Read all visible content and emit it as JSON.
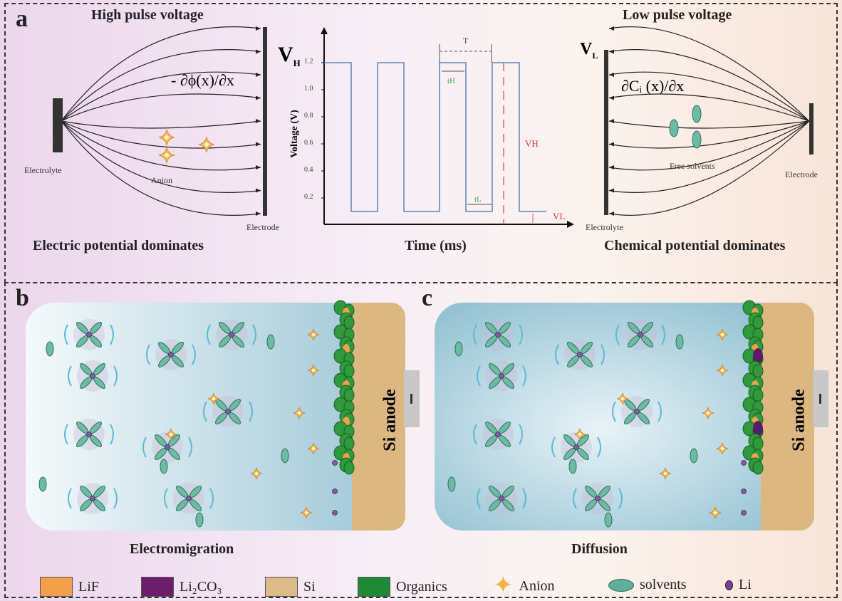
{
  "panel_a": {
    "label": "a",
    "left": {
      "title": "High pulse voltage",
      "gradient_label": "- ∂ϕ(x)/∂x",
      "source_label": "Electrolyte",
      "particle_label": "Anion",
      "target_label": "Electrode",
      "caption": "Electric potential dominates"
    },
    "right": {
      "title": "Low pulse voltage",
      "gradient_label": "∂Cᵢ (x)/∂x",
      "source_label": "Electrode",
      "particle_label": "Free solvents",
      "target_label": "Electrolyte",
      "caption": "Chemical potential dominates",
      "v_label": "V",
      "v_sub": "L"
    },
    "chart": {
      "vh_label": "V",
      "vh_sub": "H",
      "ylabel": "Voltage (V)",
      "xlabel": "Time (ms)",
      "yticks": [
        "1.2",
        "1.0",
        "0.8",
        "0.6",
        "0.4",
        "0.2"
      ],
      "high_level": 1.2,
      "low_level": 0.1,
      "annotations": {
        "period": "T",
        "t_high": "tH",
        "t_low": "tL",
        "v_high": "VH",
        "v_low": "VL"
      },
      "colors": {
        "wave": "#5b86b8",
        "vh_line": "#d06a6a",
        "t_labels": "#49a24a"
      }
    }
  },
  "panel_b": {
    "label": "b",
    "anode_label": "Si anode",
    "caption": "Electromigration"
  },
  "panel_c": {
    "label": "c",
    "anode_label": "Si anode",
    "caption": "Diffusion"
  },
  "legend": [
    {
      "label": "LiF",
      "color": "#f4a04a"
    },
    {
      "label": "Li₂CO₃",
      "color": "#6c1e6c"
    },
    {
      "label": "Si",
      "color": "#dcbb88"
    },
    {
      "label": "Organics",
      "color": "#1f8a35"
    },
    {
      "label": "Anion",
      "color": "#f2b24a"
    },
    {
      "label": "solvents",
      "color": "#5fae9a"
    },
    {
      "label": "Li",
      "color": "#7a3d9a"
    }
  ]
}
